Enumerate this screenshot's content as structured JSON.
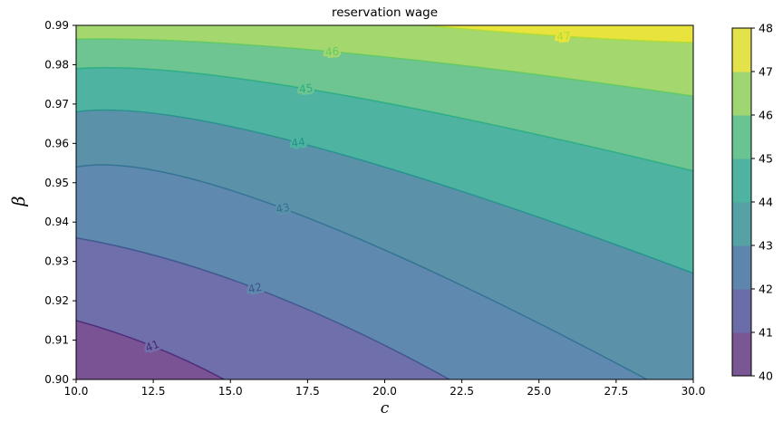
{
  "figure": {
    "title": "reservation wage"
  },
  "chart_data": {
    "type": "contour",
    "title": "reservation wage",
    "xlabel": "c",
    "ylabel": "β",
    "xlim": [
      10,
      30
    ],
    "ylim": [
      0.9,
      0.99
    ],
    "grid": false,
    "xticks": [
      10,
      12.5,
      15,
      17.5,
      20,
      22.5,
      25,
      27.5,
      30
    ],
    "xtick_labels": [
      "10.0",
      "12.5",
      "15.0",
      "17.5",
      "20.0",
      "22.5",
      "25.0",
      "27.5",
      "30.0"
    ],
    "yticks": [
      0.9,
      0.91,
      0.92,
      0.93,
      0.94,
      0.95,
      0.96,
      0.97,
      0.98,
      0.99
    ],
    "ytick_labels": [
      "0.90",
      "0.91",
      "0.92",
      "0.93",
      "0.94",
      "0.95",
      "0.96",
      "0.97",
      "0.98",
      "0.99"
    ],
    "levels": [
      40,
      41,
      42,
      43,
      44,
      45,
      46,
      47,
      48
    ],
    "band_colors_plot": [
      "#7a5394",
      "#6f6fab",
      "#6089af",
      "#5b92aa",
      "#4fb3a1",
      "#6fc591",
      "#a4d86e",
      "#e9e43d"
    ],
    "band_colors_colorbar": [
      "#7a5695",
      "#6b6da8",
      "#5e86ad",
      "#55a1a3",
      "#4eb3a0",
      "#69c491",
      "#9fd672",
      "#e3e24a"
    ],
    "colorbar": {
      "min": 40,
      "max": 48,
      "ticks": [
        40,
        41,
        42,
        43,
        44,
        45,
        46,
        47,
        48
      ],
      "tick_labels": [
        "40",
        "41",
        "42",
        "43",
        "44",
        "45",
        "46",
        "47",
        "48"
      ]
    },
    "contours": [
      {
        "level": "41",
        "color": "#482475",
        "start": [
          10,
          0.915
        ],
        "mid": [
          12.47,
          0.9085
        ],
        "end": [
          14.8,
          0.9
        ],
        "exit": "bottom",
        "label_rot": -21
      },
      {
        "level": "42",
        "color": "#3b528b",
        "start": [
          10,
          0.936
        ],
        "mid": [
          15.8,
          0.9232
        ],
        "end": [
          22.1,
          0.9
        ],
        "exit": "bottom",
        "label_rot": -14
      },
      {
        "level": "43",
        "color": "#2c708e",
        "start": [
          10,
          0.954
        ],
        "mid": [
          16.7,
          0.9435
        ],
        "end": [
          28.5,
          0.9
        ],
        "exit": "bottom",
        "label_rot": -11
      },
      {
        "level": "44",
        "color": "#21918c",
        "start": [
          10,
          0.968
        ],
        "mid": [
          17.2,
          0.9602
        ],
        "end": [
          30,
          0.927
        ],
        "exit": "right",
        "label_rot": -8
      },
      {
        "level": "45",
        "color": "#27ad81",
        "start": [
          10,
          0.979
        ],
        "mid": [
          17.45,
          0.9739
        ],
        "end": [
          30,
          0.953
        ],
        "exit": "right",
        "label_rot": -6
      },
      {
        "level": "46",
        "color": "#5ec962",
        "start": [
          10,
          0.9865
        ],
        "mid": [
          18.3,
          0.9833
        ],
        "end": [
          30,
          0.972
        ],
        "exit": "right",
        "label_rot": -4
      },
      {
        "level": "47",
        "color": "#aadc32",
        "start": [
          21.3,
          0.99
        ],
        "mid": [
          25.8,
          0.9872
        ],
        "end": [
          30,
          0.9856
        ],
        "exit": "right",
        "label_rot": -4
      }
    ]
  }
}
